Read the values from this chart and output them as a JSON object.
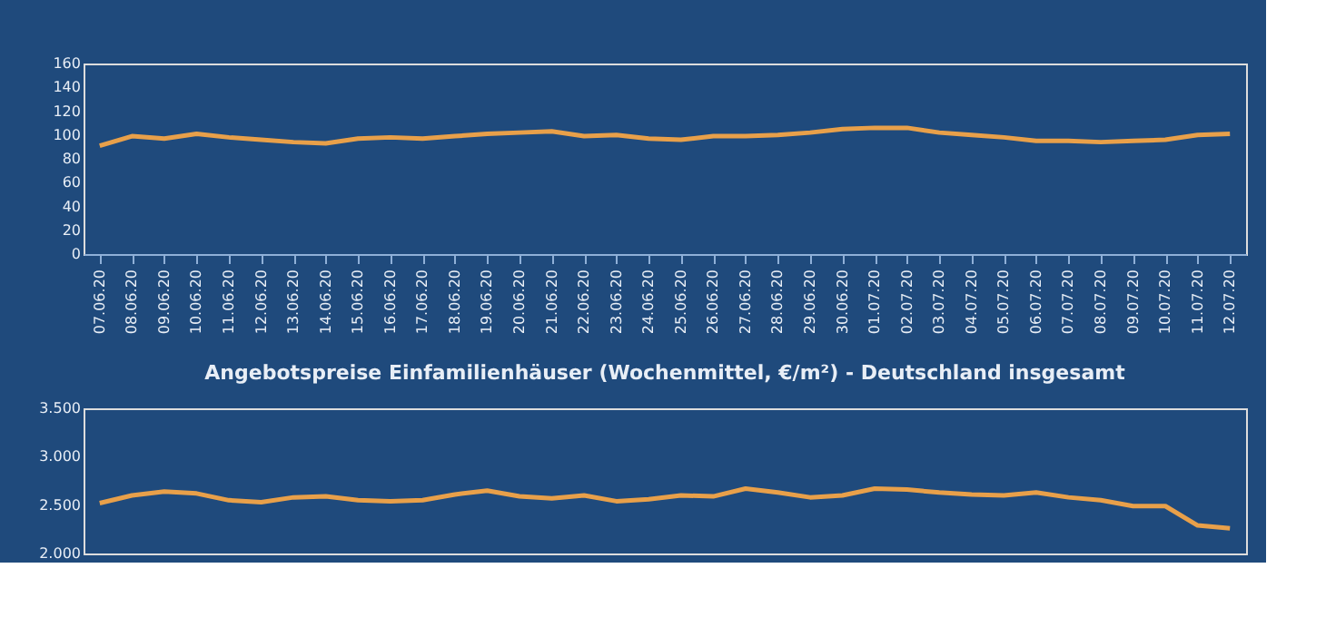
{
  "chart_data": [
    {
      "type": "line",
      "categories": [
        "07.06.20",
        "08.06.20",
        "09.06.20",
        "10.06.20",
        "11.06.20",
        "12.06.20",
        "13.06.20",
        "14.06.20",
        "15.06.20",
        "16.06.20",
        "17.06.20",
        "18.06.20",
        "19.06.20",
        "20.06.20",
        "21.06.20",
        "22.06.20",
        "23.06.20",
        "24.06.20",
        "25.06.20",
        "26.06.20",
        "27.06.20",
        "28.06.20",
        "29.06.20",
        "30.06.20",
        "01.07.20",
        "02.07.20",
        "03.07.20",
        "04.07.20",
        "05.07.20",
        "06.07.20",
        "07.07.20",
        "08.07.20",
        "09.07.20",
        "10.07.20",
        "11.07.20",
        "12.07.20"
      ],
      "series": [
        {
          "color": "#e8a04a",
          "values": [
            91,
            99,
            97,
            101,
            98,
            96,
            94,
            93,
            97,
            98,
            97,
            99,
            101,
            102,
            103,
            99,
            100,
            97,
            96,
            99,
            99,
            100,
            102,
            105,
            106,
            106,
            102,
            100,
            98,
            95,
            95,
            94,
            95,
            96,
            100,
            101
          ]
        }
      ],
      "ylim": [
        0,
        160
      ],
      "yticks": [
        0,
        20,
        40,
        60,
        80,
        100,
        120,
        140,
        160
      ],
      "grid": false,
      "marker": "none",
      "line_style": "solid"
    },
    {
      "type": "line",
      "title": "Angebotspreise Einfamilienhäuser (Wochenmittel, €/m²) - Deutschland insgesamt",
      "categories": [
        null,
        null,
        null,
        null,
        null,
        null,
        null,
        null,
        null,
        null,
        null,
        null,
        null,
        null,
        null,
        null,
        null,
        null,
        null,
        null,
        null,
        null,
        null,
        null,
        null,
        null,
        null,
        null,
        null,
        null,
        null,
        null,
        null,
        null,
        null,
        null
      ],
      "series": [
        {
          "color": "#e8a04a",
          "values": [
            2520,
            2600,
            2640,
            2620,
            2550,
            2530,
            2580,
            2590,
            2550,
            2540,
            2550,
            2610,
            2650,
            2590,
            2570,
            2600,
            2540,
            2560,
            2600,
            2590,
            2670,
            2630,
            2580,
            2600,
            2670,
            2660,
            2630,
            2610,
            2600,
            2630,
            2580,
            2550,
            2490,
            2490,
            2290,
            2260
          ]
        }
      ],
      "ylim": [
        2000,
        3500
      ],
      "yticks": [
        {
          "value": 2000,
          "label": "2.000"
        },
        {
          "value": 2500,
          "label": "2.500"
        },
        {
          "value": 3000,
          "label": "3.000"
        },
        {
          "value": 3500,
          "label": "3.500"
        }
      ],
      "tick_labels": "y",
      "grid": false,
      "marker": "none",
      "line_style": "solid"
    }
  ]
}
